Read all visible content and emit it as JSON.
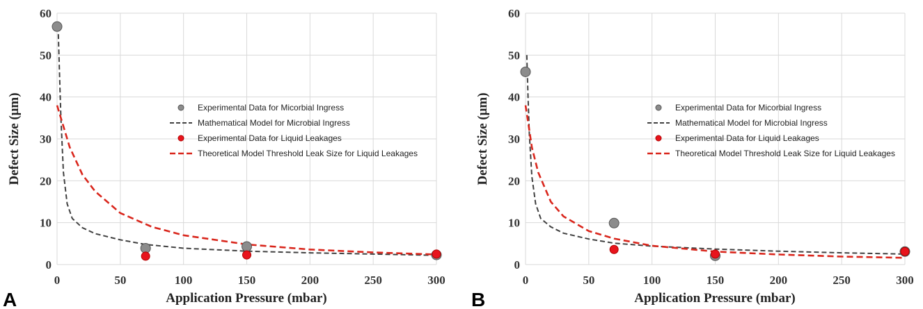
{
  "chart_data": [
    {
      "type": "scatter",
      "panel_label": "A",
      "xlabel": "Application Pressure (mbar)",
      "ylabel": "Defect Size (μm)",
      "xlim": [
        0,
        300
      ],
      "ylim": [
        0,
        60
      ],
      "x_ticks": [
        "0",
        "50",
        "100",
        "150",
        "200",
        "250",
        "300"
      ],
      "y_ticks": [
        "0",
        "10",
        "20",
        "30",
        "40",
        "50",
        "60"
      ],
      "grid": true,
      "legend_position": "center",
      "series": [
        {
          "name": "Experimental Data for Micorbial Ingress",
          "kind": "points",
          "color": "#8c8c8c",
          "points": [
            [
              0,
              56.8
            ],
            [
              70,
              3.9
            ],
            [
              150,
              4.3
            ],
            [
              300,
              2.3
            ]
          ]
        },
        {
          "name": "Mathematical Model for Microbial Ingress",
          "kind": "dashed-line",
          "color": "#404040",
          "points": [
            [
              1,
              55
            ],
            [
              2,
              45
            ],
            [
              3,
              35
            ],
            [
              5,
              22
            ],
            [
              8,
              14.5
            ],
            [
              12,
              11
            ],
            [
              20,
              8.8
            ],
            [
              30,
              7.4
            ],
            [
              50,
              5.9
            ],
            [
              70,
              4.8
            ],
            [
              100,
              3.9
            ],
            [
              150,
              3.2
            ],
            [
              200,
              2.8
            ],
            [
              250,
              2.5
            ],
            [
              300,
              2.2
            ]
          ]
        },
        {
          "name": "Experimental Data for Liquid Leakages",
          "kind": "points",
          "color": "#e8141c",
          "points": [
            [
              70,
              2.0
            ],
            [
              150,
              2.3
            ],
            [
              300,
              2.5
            ]
          ]
        },
        {
          "name": "Theoretical Model Threshold Leak Size for Liquid Leakages",
          "kind": "dashed-line",
          "color": "#d9261c",
          "points": [
            [
              0,
              38
            ],
            [
              5,
              33
            ],
            [
              10,
              28
            ],
            [
              20,
              21.5
            ],
            [
              30,
              17.5
            ],
            [
              50,
              12.3
            ],
            [
              75,
              9
            ],
            [
              100,
              7
            ],
            [
              150,
              4.8
            ],
            [
              200,
              3.6
            ],
            [
              250,
              2.9
            ],
            [
              300,
              2.4
            ]
          ]
        }
      ]
    },
    {
      "type": "scatter",
      "panel_label": "B",
      "xlabel": "Application Pressure (mbar)",
      "ylabel": "Defect Size (μm)",
      "xlim": [
        0,
        300
      ],
      "ylim": [
        0,
        60
      ],
      "x_ticks": [
        "0",
        "50",
        "100",
        "150",
        "200",
        "250",
        "300"
      ],
      "y_ticks": [
        "0",
        "10",
        "20",
        "30",
        "40",
        "50",
        "60"
      ],
      "grid": true,
      "legend_position": "center",
      "series": [
        {
          "name": "Experimental Data for Micorbial Ingress",
          "kind": "points",
          "color": "#8c8c8c",
          "points": [
            [
              0,
              46
            ],
            [
              70,
              9.9
            ],
            [
              150,
              2.1
            ],
            [
              300,
              3.1
            ]
          ]
        },
        {
          "name": "Mathematical Model for Microbial Ingress",
          "kind": "dashed-line",
          "color": "#404040",
          "points": [
            [
              1,
              50
            ],
            [
              2,
              40
            ],
            [
              3,
              31
            ],
            [
              5,
              21
            ],
            [
              8,
              14.5
            ],
            [
              12,
              11
            ],
            [
              20,
              9
            ],
            [
              30,
              7.5
            ],
            [
              50,
              6.1
            ],
            [
              70,
              5.1
            ],
            [
              100,
              4.4
            ],
            [
              150,
              3.7
            ],
            [
              200,
              3.2
            ],
            [
              250,
              2.8
            ],
            [
              300,
              2.5
            ]
          ]
        },
        {
          "name": "Experimental Data for Liquid Leakages",
          "kind": "points",
          "color": "#e8141c",
          "points": [
            [
              70,
              3.6
            ],
            [
              150,
              2.5
            ],
            [
              300,
              3.1
            ]
          ]
        },
        {
          "name": "Theoretical Model Threshold Leak Size for Liquid Leakages",
          "kind": "dashed-line",
          "color": "#d9261c",
          "points": [
            [
              0,
              38
            ],
            [
              3,
              32
            ],
            [
              5,
              28
            ],
            [
              10,
              22
            ],
            [
              20,
              15
            ],
            [
              30,
              11.5
            ],
            [
              50,
              8
            ],
            [
              70,
              6.2
            ],
            [
              100,
              4.5
            ],
            [
              150,
              3.1
            ],
            [
              200,
              2.4
            ],
            [
              250,
              1.9
            ],
            [
              300,
              1.6
            ]
          ]
        }
      ]
    }
  ]
}
